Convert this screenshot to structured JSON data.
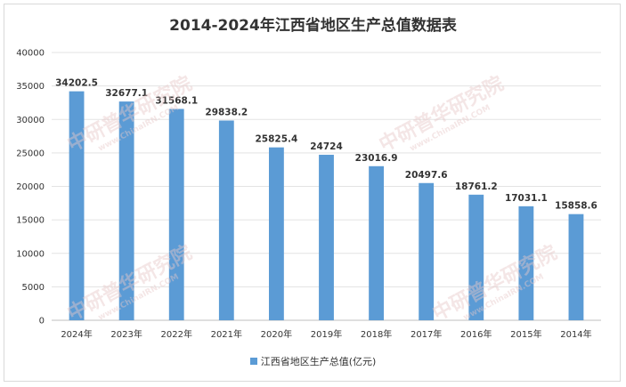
{
  "chart_data": {
    "type": "bar",
    "title": "2014-2024年江西省地区生产总值数据表",
    "categories": [
      "2024年",
      "2023年",
      "2022年",
      "2021年",
      "2020年",
      "2019年",
      "2018年",
      "2017年",
      "2016年",
      "2015年",
      "2014年"
    ],
    "series": [
      {
        "name": "江西省地区生产总值(亿元)",
        "values": [
          34202.5,
          32677.1,
          31568.1,
          29838.2,
          25825.4,
          24724,
          23016.9,
          20497.6,
          18761.2,
          17031.1,
          15858.6
        ]
      }
    ],
    "data_labels": [
      "34202.5",
      "32677.1",
      "31568.1",
      "29838.2",
      "25825.4",
      "24724",
      "23016.9",
      "20497.6",
      "18761.2",
      "17031.1",
      "15858.6"
    ],
    "yticks": [
      "0",
      "5000",
      "10000",
      "15000",
      "20000",
      "25000",
      "30000",
      "35000",
      "40000"
    ],
    "ylim": [
      0,
      40000
    ],
    "grid": "horizontal",
    "legend": "bottom",
    "bar_color": "#5b9bd5"
  },
  "watermark": {
    "cn": "中研普华研究院",
    "en": "www.ChinaIRN.COM",
    "logo": "CIRN"
  }
}
